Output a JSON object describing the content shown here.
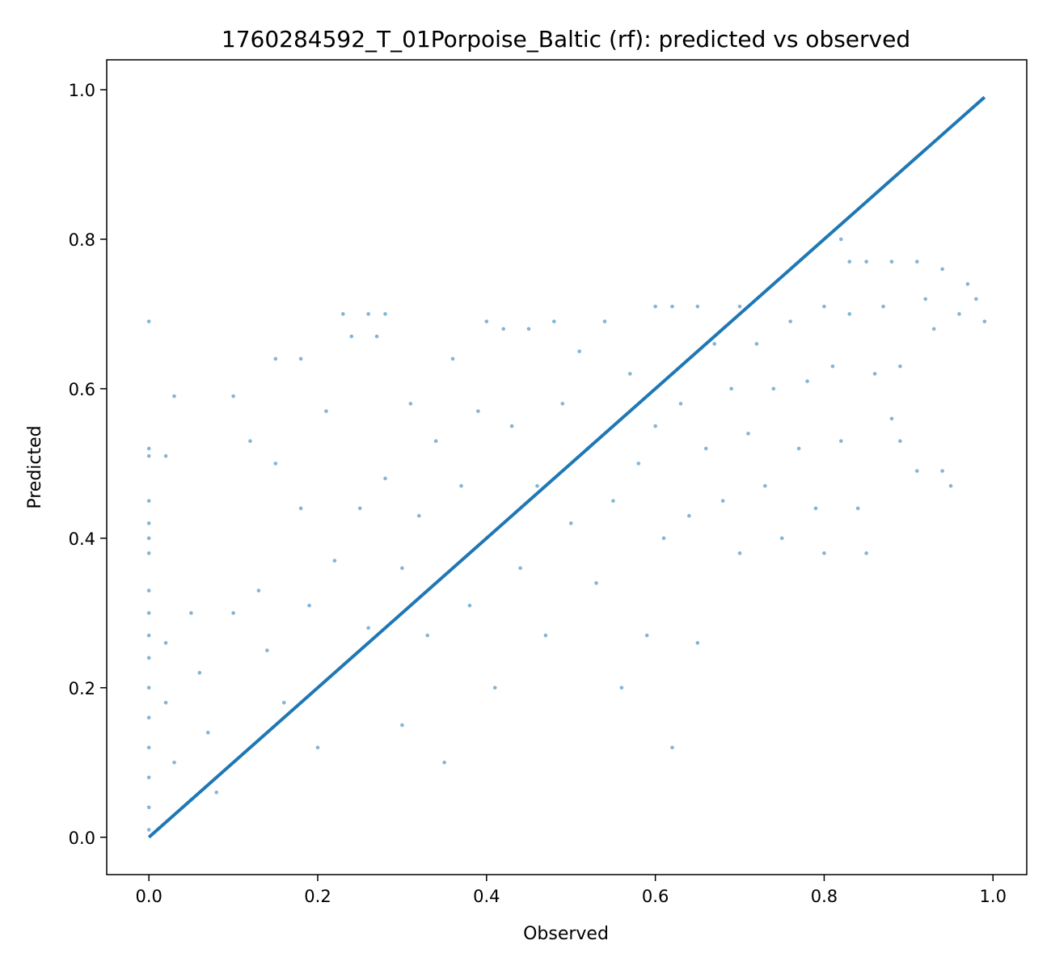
{
  "chart_data": {
    "type": "scatter",
    "title": "1760284592_T_01Porpoise_Baltic (rf): predicted vs observed",
    "xlabel": "Observed",
    "ylabel": "Predicted",
    "xlim": [
      -0.05,
      1.04
    ],
    "ylim": [
      -0.05,
      1.04
    ],
    "xticks": [
      0.0,
      0.2,
      0.4,
      0.6,
      0.8,
      1.0
    ],
    "yticks": [
      0.0,
      0.2,
      0.4,
      0.6,
      0.8,
      1.0
    ],
    "xtick_labels": [
      "0.0",
      "0.2",
      "0.4",
      "0.6",
      "0.8",
      "1.0"
    ],
    "ytick_labels": [
      "0.0",
      "0.2",
      "0.4",
      "0.6",
      "0.8",
      "1.0"
    ],
    "grid": false,
    "legend": "none",
    "colors": {
      "series": "#1f77b4",
      "axes": "#000000"
    },
    "identity_line": {
      "x": [
        0.0,
        0.99
      ],
      "y": [
        0.0,
        0.99
      ]
    },
    "series": [
      {
        "kind": "scatter",
        "points": [
          [
            0.0,
            0.69
          ],
          [
            0.0,
            0.52
          ],
          [
            0.0,
            0.51
          ],
          [
            0.0,
            0.45
          ],
          [
            0.0,
            0.42
          ],
          [
            0.0,
            0.4
          ],
          [
            0.0,
            0.38
          ],
          [
            0.0,
            0.33
          ],
          [
            0.0,
            0.3
          ],
          [
            0.0,
            0.27
          ],
          [
            0.0,
            0.24
          ],
          [
            0.0,
            0.2
          ],
          [
            0.0,
            0.16
          ],
          [
            0.0,
            0.12
          ],
          [
            0.0,
            0.08
          ],
          [
            0.0,
            0.04
          ],
          [
            0.0,
            0.01
          ],
          [
            0.02,
            0.51
          ],
          [
            0.03,
            0.59
          ],
          [
            0.1,
            0.59
          ],
          [
            0.02,
            0.26
          ],
          [
            0.02,
            0.18
          ],
          [
            0.03,
            0.1
          ],
          [
            0.05,
            0.05
          ],
          [
            0.05,
            0.3
          ],
          [
            0.06,
            0.22
          ],
          [
            0.07,
            0.14
          ],
          [
            0.08,
            0.06
          ],
          [
            0.1,
            0.3
          ],
          [
            0.12,
            0.53
          ],
          [
            0.13,
            0.33
          ],
          [
            0.14,
            0.25
          ],
          [
            0.15,
            0.64
          ],
          [
            0.15,
            0.5
          ],
          [
            0.16,
            0.18
          ],
          [
            0.18,
            0.64
          ],
          [
            0.18,
            0.44
          ],
          [
            0.19,
            0.31
          ],
          [
            0.2,
            0.12
          ],
          [
            0.21,
            0.57
          ],
          [
            0.22,
            0.37
          ],
          [
            0.23,
            0.7
          ],
          [
            0.24,
            0.67
          ],
          [
            0.25,
            0.44
          ],
          [
            0.26,
            0.7
          ],
          [
            0.26,
            0.28
          ],
          [
            0.27,
            0.67
          ],
          [
            0.28,
            0.7
          ],
          [
            0.28,
            0.48
          ],
          [
            0.3,
            0.36
          ],
          [
            0.3,
            0.15
          ],
          [
            0.31,
            0.58
          ],
          [
            0.32,
            0.43
          ],
          [
            0.33,
            0.27
          ],
          [
            0.34,
            0.53
          ],
          [
            0.35,
            0.1
          ],
          [
            0.36,
            0.64
          ],
          [
            0.37,
            0.47
          ],
          [
            0.38,
            0.31
          ],
          [
            0.39,
            0.57
          ],
          [
            0.4,
            0.69
          ],
          [
            0.4,
            0.4
          ],
          [
            0.41,
            0.2
          ],
          [
            0.42,
            0.68
          ],
          [
            0.43,
            0.55
          ],
          [
            0.44,
            0.36
          ],
          [
            0.45,
            0.68
          ],
          [
            0.46,
            0.47
          ],
          [
            0.47,
            0.27
          ],
          [
            0.48,
            0.69
          ],
          [
            0.49,
            0.58
          ],
          [
            0.5,
            0.42
          ],
          [
            0.51,
            0.65
          ],
          [
            0.52,
            0.52
          ],
          [
            0.53,
            0.34
          ],
          [
            0.54,
            0.69
          ],
          [
            0.55,
            0.45
          ],
          [
            0.56,
            0.2
          ],
          [
            0.57,
            0.62
          ],
          [
            0.58,
            0.5
          ],
          [
            0.59,
            0.27
          ],
          [
            0.6,
            0.71
          ],
          [
            0.6,
            0.55
          ],
          [
            0.61,
            0.4
          ],
          [
            0.62,
            0.71
          ],
          [
            0.62,
            0.12
          ],
          [
            0.63,
            0.58
          ],
          [
            0.64,
            0.43
          ],
          [
            0.65,
            0.71
          ],
          [
            0.65,
            0.26
          ],
          [
            0.66,
            0.52
          ],
          [
            0.67,
            0.66
          ],
          [
            0.68,
            0.45
          ],
          [
            0.69,
            0.6
          ],
          [
            0.7,
            0.71
          ],
          [
            0.7,
            0.38
          ],
          [
            0.71,
            0.54
          ],
          [
            0.72,
            0.66
          ],
          [
            0.73,
            0.47
          ],
          [
            0.74,
            0.6
          ],
          [
            0.75,
            0.4
          ],
          [
            0.76,
            0.69
          ],
          [
            0.77,
            0.52
          ],
          [
            0.78,
            0.61
          ],
          [
            0.79,
            0.44
          ],
          [
            0.8,
            0.71
          ],
          [
            0.8,
            0.38
          ],
          [
            0.81,
            0.63
          ],
          [
            0.82,
            0.8
          ],
          [
            0.82,
            0.53
          ],
          [
            0.83,
            0.77
          ],
          [
            0.83,
            0.7
          ],
          [
            0.84,
            0.44
          ],
          [
            0.85,
            0.77
          ],
          [
            0.85,
            0.38
          ],
          [
            0.86,
            0.62
          ],
          [
            0.87,
            0.71
          ],
          [
            0.88,
            0.77
          ],
          [
            0.88,
            0.56
          ],
          [
            0.89,
            0.63
          ],
          [
            0.89,
            0.53
          ],
          [
            0.91,
            0.77
          ],
          [
            0.91,
            0.49
          ],
          [
            0.92,
            0.72
          ],
          [
            0.93,
            0.68
          ],
          [
            0.94,
            0.76
          ],
          [
            0.94,
            0.49
          ],
          [
            0.95,
            0.47
          ],
          [
            0.96,
            0.7
          ],
          [
            0.97,
            0.74
          ],
          [
            0.98,
            0.72
          ],
          [
            0.99,
            0.69
          ]
        ]
      },
      {
        "kind": "line",
        "name": "",
        "x": [
          0.0,
          0.99
        ],
        "y": [
          0.0,
          0.99
        ]
      }
    ]
  }
}
